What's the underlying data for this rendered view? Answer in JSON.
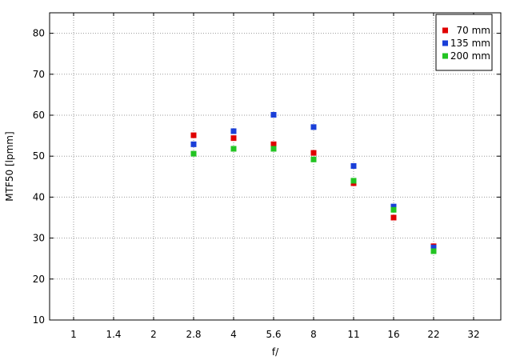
{
  "chart_data": {
    "type": "scatter",
    "title": "",
    "xlabel": "f/",
    "ylabel": "MTF50 [lpmm]",
    "x_categories": [
      "1",
      "1.4",
      "2",
      "2.8",
      "4",
      "5.6",
      "8",
      "11",
      "16",
      "22",
      "32"
    ],
    "ylim": [
      10,
      85
    ],
    "y_ticks": [
      10,
      20,
      30,
      40,
      50,
      60,
      70,
      80
    ],
    "grid": true,
    "legend_position": "top-right",
    "series": [
      {
        "name": "70 mm",
        "color": "#e00000",
        "x": [
          "2.8",
          "4",
          "5.6",
          "8",
          "11",
          "16",
          "22"
        ],
        "values": [
          55.1,
          54.4,
          52.9,
          50.8,
          43.4,
          35.0,
          28.0
        ]
      },
      {
        "name": "135 mm",
        "color": "#1a3fd8",
        "x": [
          "2.8",
          "4",
          "5.6",
          "8",
          "11",
          "16",
          "22"
        ],
        "values": [
          52.9,
          56.1,
          60.1,
          57.1,
          47.6,
          37.7,
          27.7
        ]
      },
      {
        "name": "200 mm",
        "color": "#22c422",
        "x": [
          "2.8",
          "4",
          "5.6",
          "8",
          "11",
          "16",
          "22"
        ],
        "values": [
          50.6,
          51.8,
          51.8,
          49.2,
          44.0,
          36.9,
          26.8
        ]
      }
    ]
  }
}
